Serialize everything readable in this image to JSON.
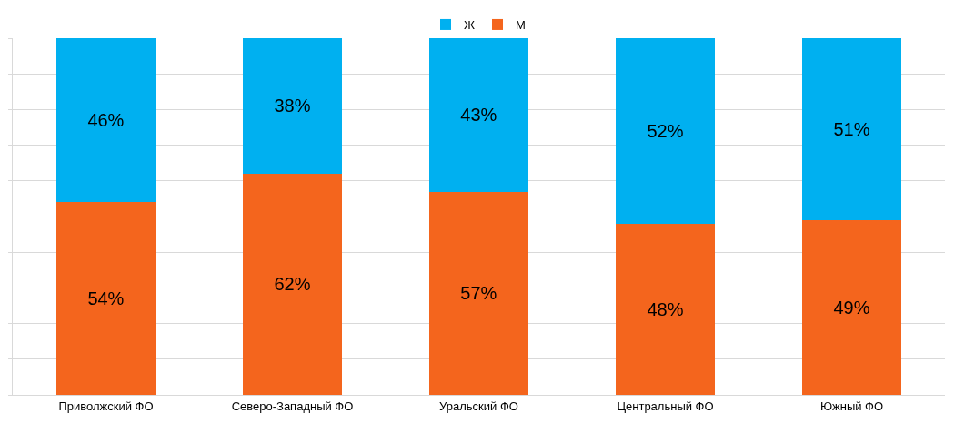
{
  "chart_data": {
    "type": "bar",
    "stacked": true,
    "categories": [
      "Приволжский ФО",
      "Северо-Западный ФО",
      "Уральский ФО",
      "Центральный ФО",
      "Южный ФО"
    ],
    "series": [
      {
        "name": "М",
        "color": "#f4651d",
        "values": [
          54,
          62,
          57,
          48,
          49
        ],
        "value_labels": [
          "54%",
          "62%",
          "57%",
          "48%",
          "49%"
        ]
      },
      {
        "name": "Ж",
        "color": "#00b0f0",
        "values": [
          46,
          38,
          43,
          52,
          51
        ],
        "value_labels": [
          "46%",
          "38%",
          "43%",
          "52%",
          "51%"
        ]
      }
    ],
    "ylim": [
      0,
      100
    ],
    "yticks": [
      {
        "value": 0,
        "label": null
      },
      {
        "value": 10,
        "label": null
      },
      {
        "value": 20,
        "label": null
      },
      {
        "value": 30,
        "label": null
      },
      {
        "value": 40,
        "label": null
      },
      {
        "value": 50,
        "label": null
      },
      {
        "value": 60,
        "label": null
      },
      {
        "value": 70,
        "label": null
      },
      {
        "value": 80,
        "label": null
      },
      {
        "value": 90,
        "label": null
      },
      {
        "value": 100,
        "label": null
      }
    ],
    "tick_labels": "x",
    "grid": "y",
    "legend": "top"
  }
}
